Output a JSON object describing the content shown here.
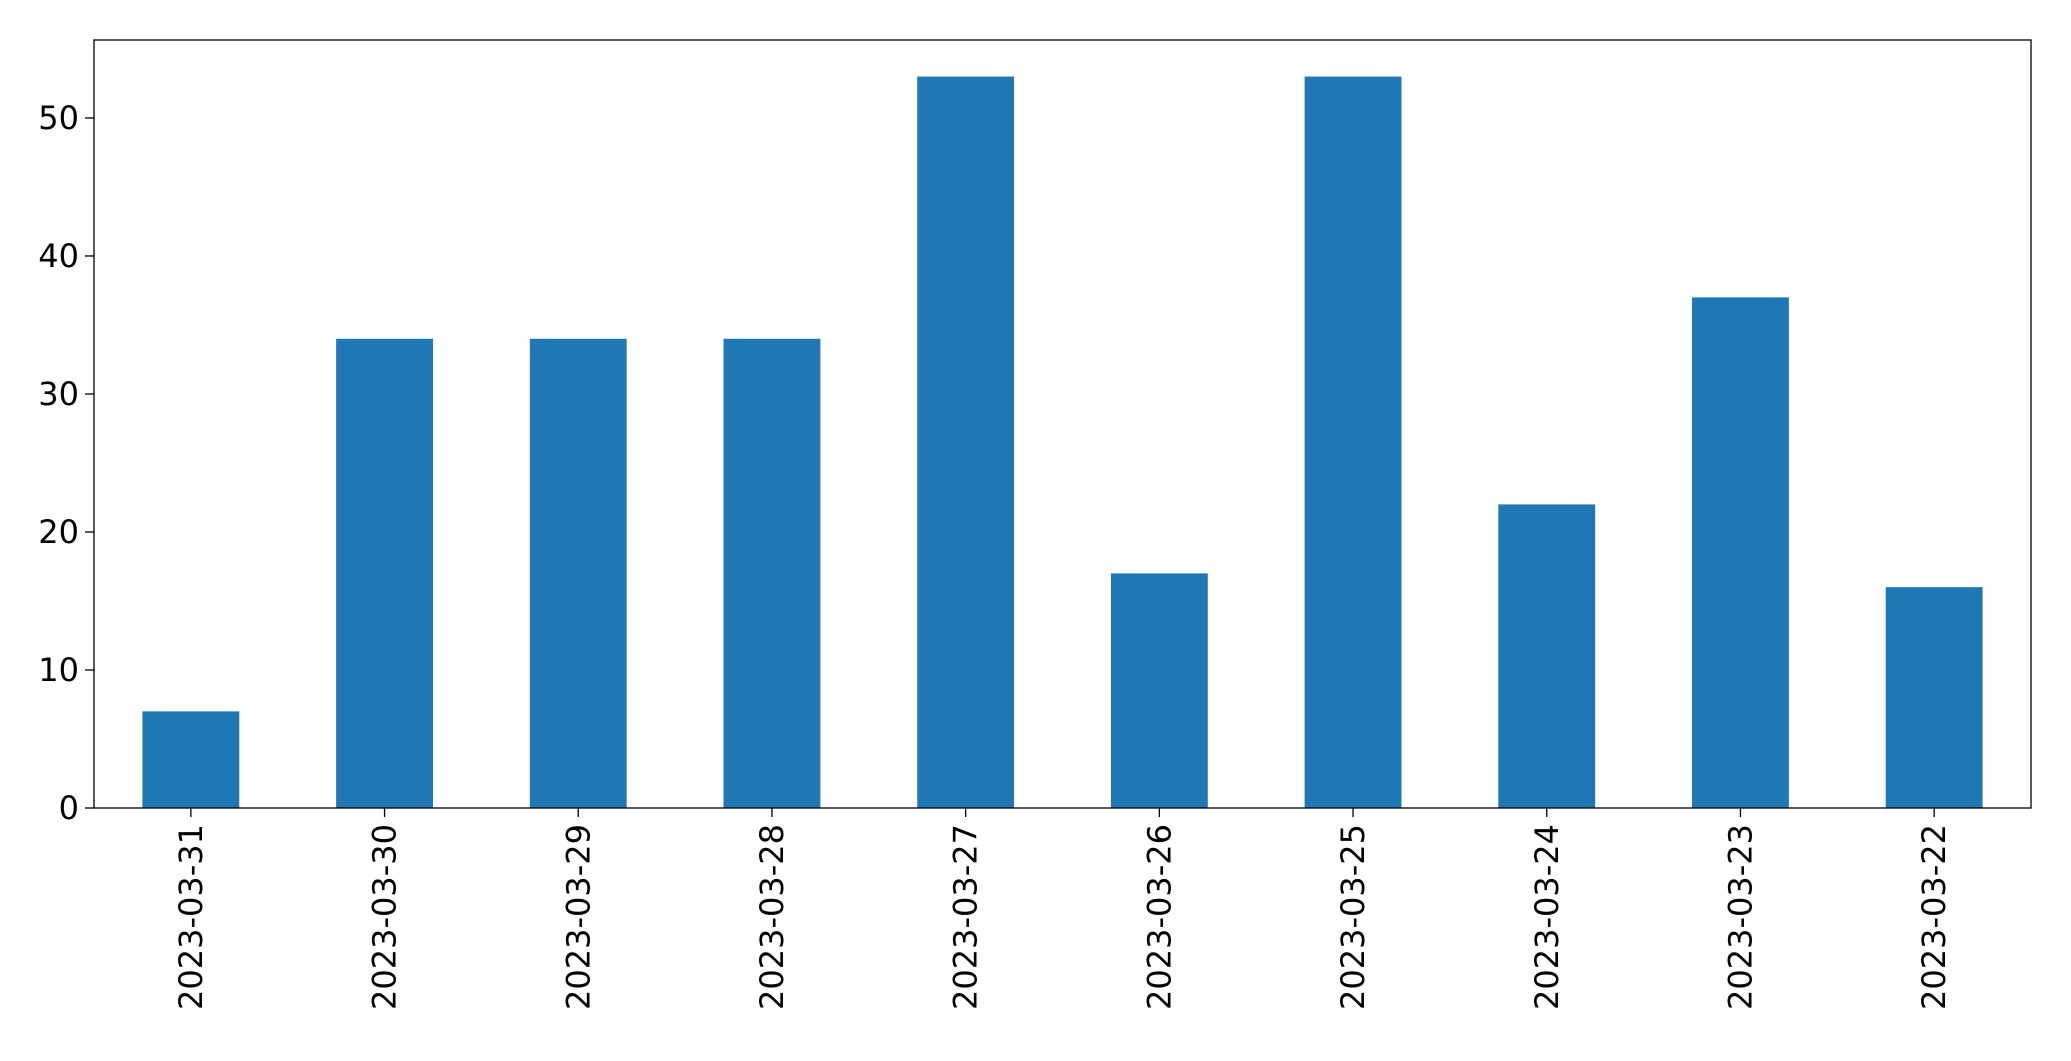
{
  "chart_data": {
    "type": "bar",
    "categories": [
      "2023-03-31",
      "2023-03-30",
      "2023-03-29",
      "2023-03-28",
      "2023-03-27",
      "2023-03-26",
      "2023-03-25",
      "2023-03-24",
      "2023-03-23",
      "2023-03-22"
    ],
    "values": [
      7,
      34,
      34,
      34,
      53,
      17,
      53,
      22,
      37,
      16
    ],
    "color": "#1f77b4",
    "ylim": [
      0,
      55.65
    ],
    "yticks": [
      0,
      10,
      20,
      30,
      40,
      50
    ],
    "grid": false
  }
}
